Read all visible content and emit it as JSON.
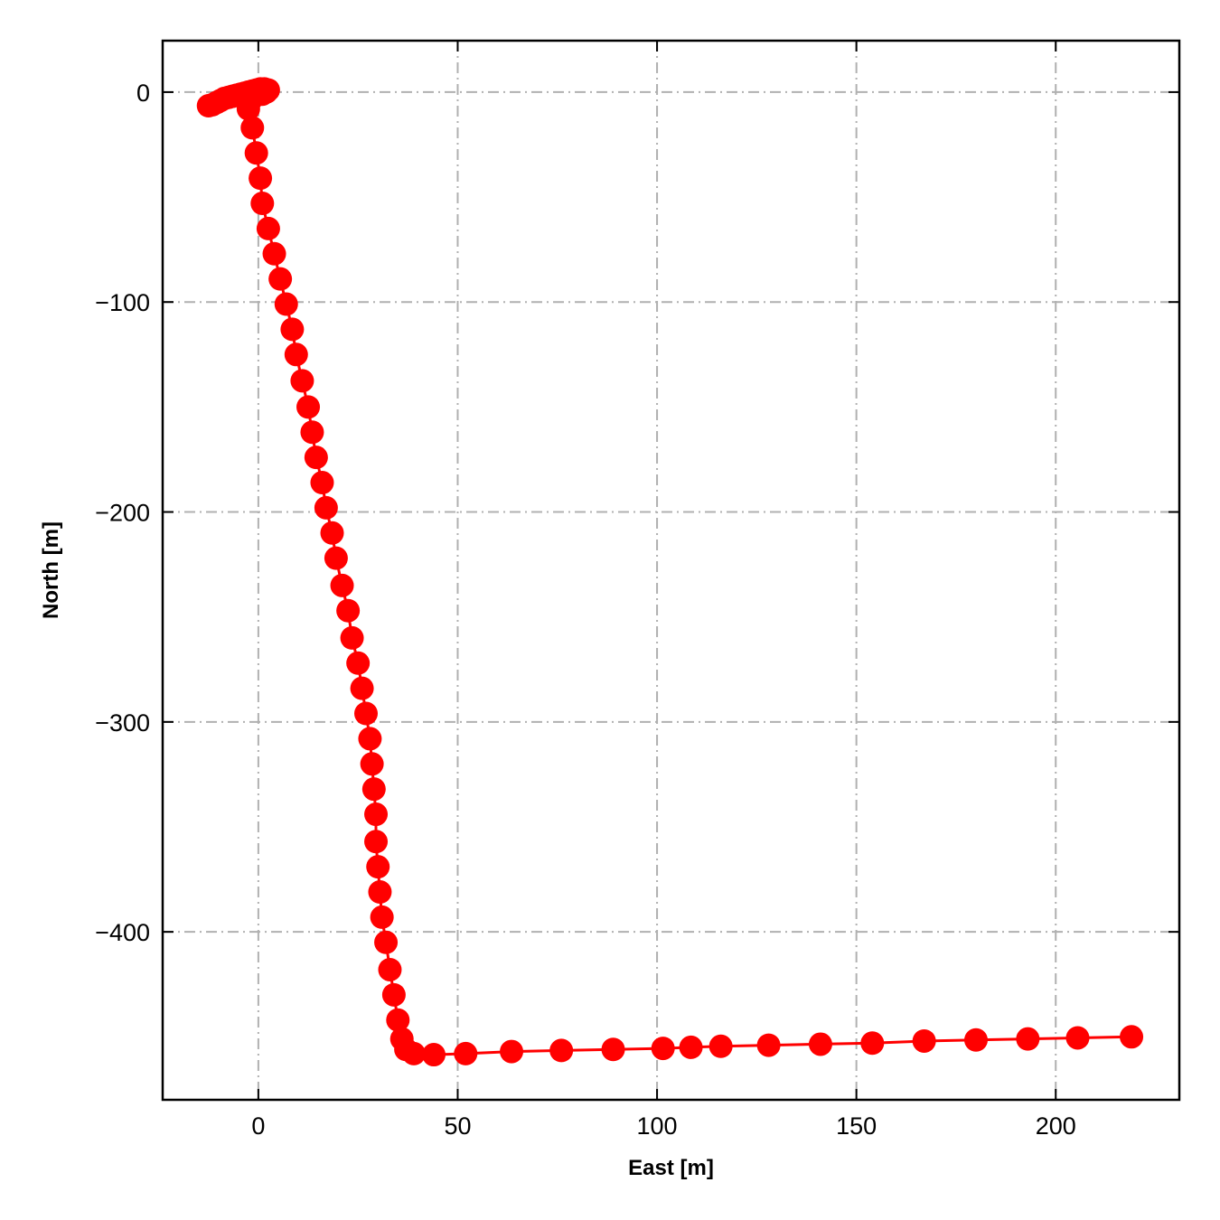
{
  "chart_data": {
    "type": "line",
    "title": "",
    "xlabel": "East [m]",
    "ylabel": "North [m]",
    "xlim": [
      -24,
      231
    ],
    "ylim": [
      -480,
      24.5
    ],
    "xticks": [
      0,
      50,
      100,
      150,
      200
    ],
    "yticks": [
      0,
      -100,
      -200,
      -300,
      -400
    ],
    "grid": true,
    "legend": "none",
    "series": [
      {
        "color": "#ff0000",
        "marker": "circle",
        "x": [
          -12.5,
          -11.5,
          -10.5,
          -9.5,
          -8.5,
          -7.5,
          -6.5,
          -5.5,
          -4.5,
          -3.5,
          -2.5,
          -1.5,
          -0.5,
          0.5,
          1.5,
          2.5,
          2.0,
          1.0,
          -1.0,
          -2.0,
          -2.5,
          -1.5,
          -0.5,
          0.5,
          1.0,
          2.5,
          4.0,
          5.5,
          7.0,
          8.5,
          9.5,
          11.0,
          12.5,
          13.5,
          14.5,
          16.0,
          17.0,
          18.5,
          19.5,
          21.0,
          22.5,
          23.5,
          25.0,
          26.0,
          27.0,
          28.0,
          28.5,
          29.0,
          29.5,
          29.5,
          30.0,
          30.5,
          31.0,
          32.0,
          33.0,
          34.0,
          35.0,
          36.0,
          37.0,
          39.0,
          44.0,
          52.0,
          63.5,
          76.0,
          89.0,
          101.5,
          108.5,
          116.0,
          128.0,
          141.0,
          154.0,
          167.0,
          180.0,
          193.0,
          205.5,
          219.0
        ],
        "y": [
          -6.5,
          -6.0,
          -5.0,
          -4.0,
          -3.0,
          -2.5,
          -2.0,
          -1.5,
          -1.0,
          -0.5,
          0.0,
          0.5,
          1.0,
          1.5,
          1.5,
          1.0,
          0.0,
          -1.0,
          -2.0,
          -4.0,
          -8.0,
          -17.0,
          -29.0,
          -41.0,
          -53.0,
          -65.0,
          -77.0,
          -89.0,
          -101.0,
          -113.0,
          -125.0,
          -137.5,
          -150.0,
          -162.0,
          -174.0,
          -186.0,
          -198.0,
          -210.0,
          -222.0,
          -235.0,
          -247.0,
          -260.0,
          -272.0,
          -284.0,
          -296.0,
          -308.0,
          -320.0,
          -332.0,
          -344.0,
          -357.0,
          -369.0,
          -381.0,
          -393.0,
          -405.0,
          -418.0,
          -430.0,
          -442.0,
          -451.0,
          -456.0,
          -458.0,
          -458.5,
          -458.0,
          -457.0,
          -456.5,
          -456.0,
          -455.5,
          -455.0,
          -454.5,
          -454.0,
          -453.5,
          -453.0,
          -452.0,
          -451.5,
          -451.0,
          -450.5,
          -450.0
        ]
      }
    ]
  }
}
